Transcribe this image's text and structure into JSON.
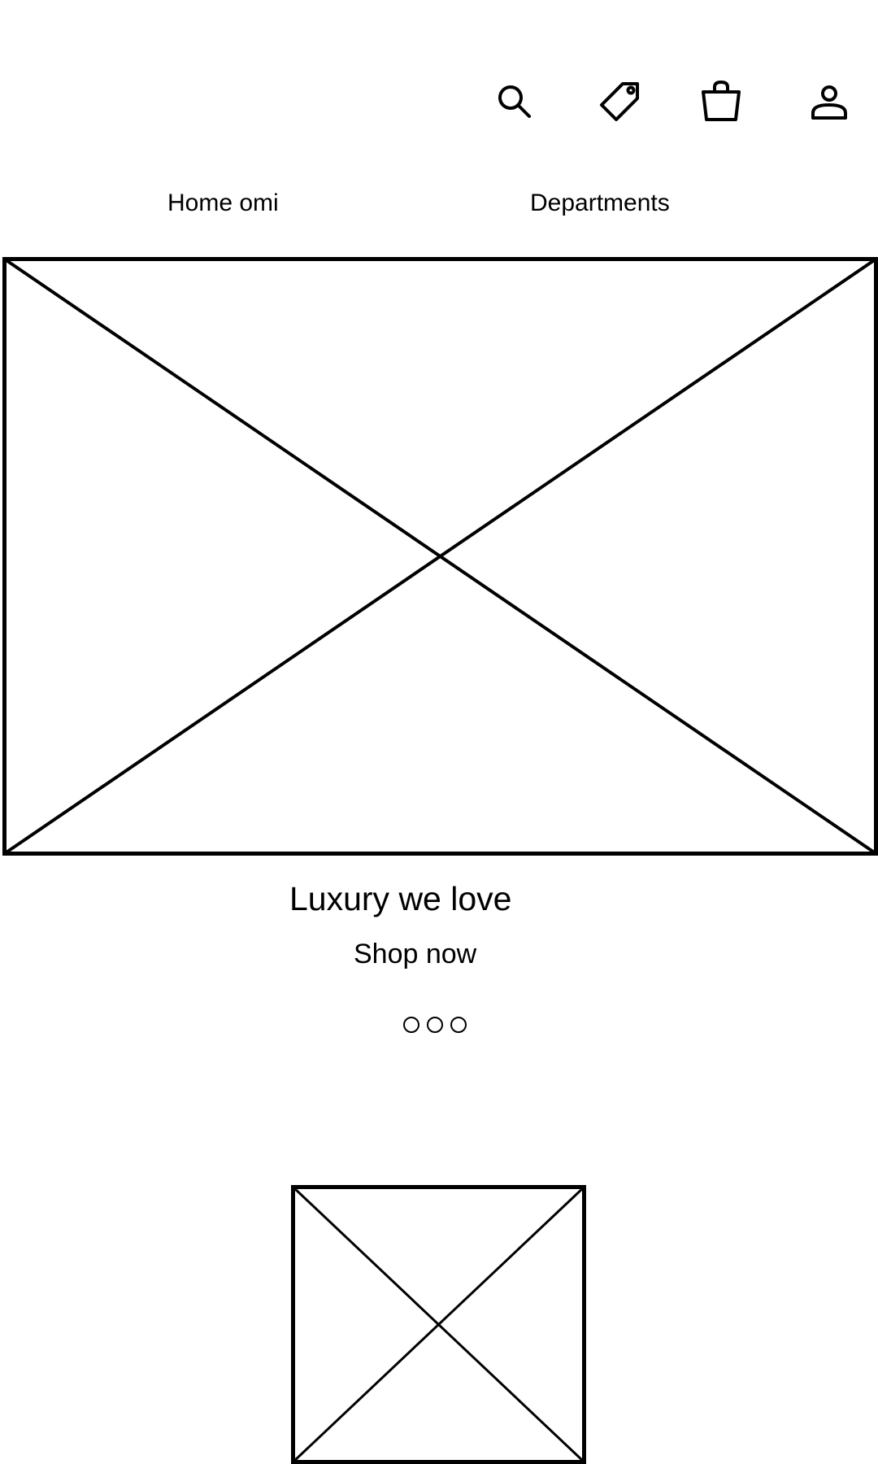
{
  "header": {
    "icons": [
      "search-icon",
      "tag-icon",
      "shopping-bag-icon",
      "user-icon"
    ]
  },
  "nav": {
    "home_label": "Home omi",
    "departments_label": "Departments"
  },
  "hero": {
    "headline": "Luxury we love",
    "cta_label": "Shop now",
    "carousel_dot_count": 3
  },
  "colors": {
    "stroke": "#000000",
    "background": "#ffffff"
  }
}
